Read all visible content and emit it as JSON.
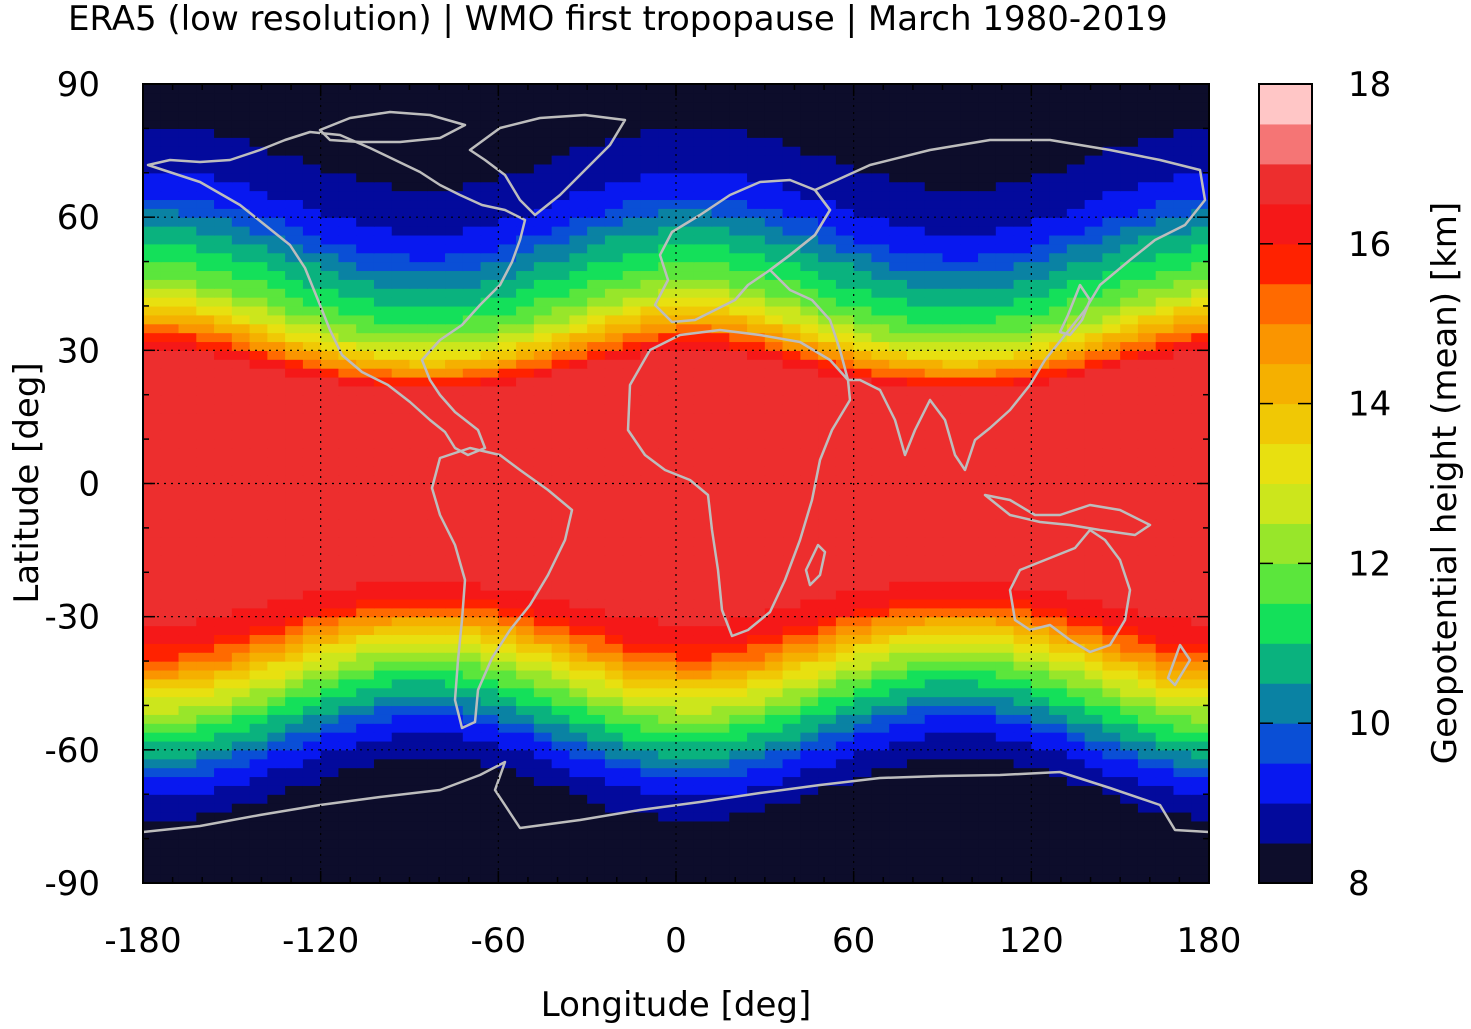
{
  "chart_data": {
    "type": "heatmap",
    "title": "ERA5 (low resolution) | WMO first tropopause | March 1980-2019",
    "xlabel": "Longitude [deg]",
    "ylabel": "Latitude [deg]",
    "colorbar_label": "Geopotential height (mean) [km]",
    "xlim": [
      -180,
      180
    ],
    "ylim": [
      -90,
      90
    ],
    "xticks": [
      -180,
      -120,
      -60,
      0,
      60,
      120,
      180
    ],
    "yticks": [
      -90,
      -60,
      -30,
      0,
      30,
      60,
      90
    ],
    "colorbar_range": [
      8,
      18
    ],
    "colorbar_ticks": [
      8,
      10,
      12,
      14,
      16,
      18
    ],
    "grid": true,
    "overlay": "coastlines",
    "colormap": [
      "#0d0d2b",
      "#030a9c",
      "#0818f0",
      "#0a4fd6",
      "#0a82a3",
      "#0ab27e",
      "#14e05a",
      "#5be63c",
      "#98e62a",
      "#cce61c",
      "#e8e010",
      "#f0c805",
      "#f5b000",
      "#fa9500",
      "#ff6a00",
      "#ff2200",
      "#f51818",
      "#ed2e2e",
      "#f57575",
      "#ffc6c6"
    ],
    "zonal_profile": {
      "lat": [
        -90,
        -80,
        -70,
        -65,
        -60,
        -55,
        -50,
        -45,
        -40,
        -35,
        -30,
        -25,
        -20,
        -10,
        0,
        10,
        20,
        25,
        30,
        35,
        40,
        45,
        50,
        55,
        60,
        65,
        70,
        80,
        90
      ],
      "height_km": [
        8.1,
        8.2,
        8.4,
        8.8,
        9.4,
        10.4,
        11.3,
        12.3,
        13.4,
        14.8,
        16.1,
        16.6,
        16.7,
        16.7,
        16.7,
        16.7,
        16.7,
        16.5,
        14.6,
        12.8,
        11.8,
        11.2,
        10.6,
        9.9,
        9.2,
        8.9,
        8.6,
        8.3,
        8.2
      ]
    }
  }
}
